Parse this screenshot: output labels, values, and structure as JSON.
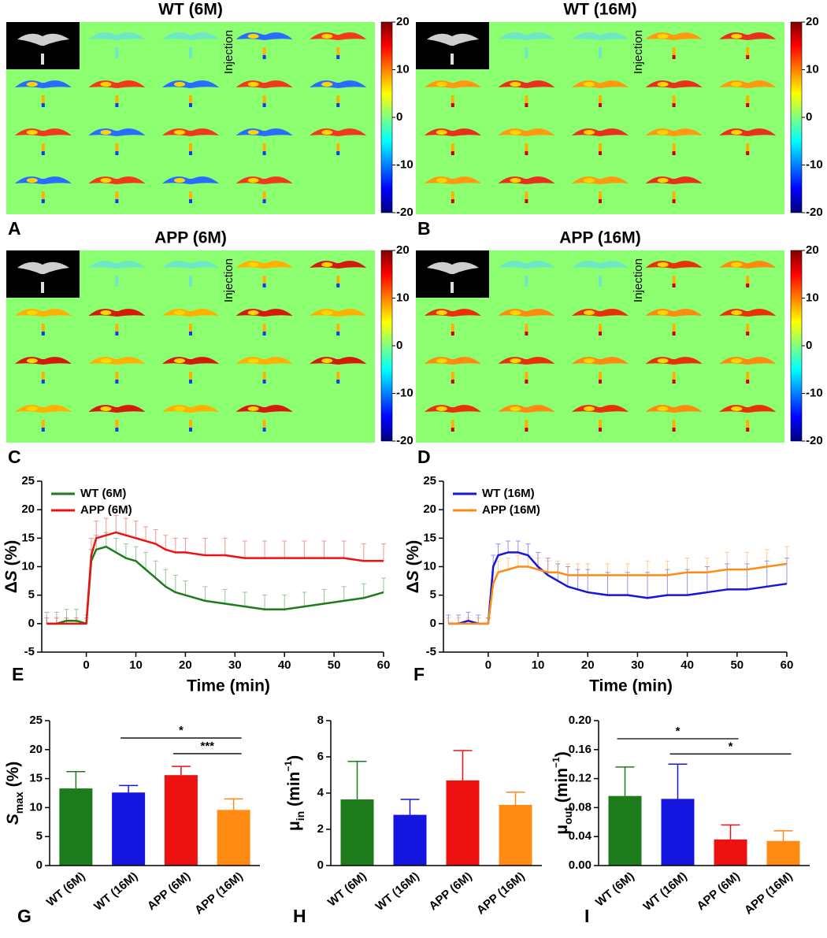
{
  "chart_data": [
    {
      "type": "heatmap-grid",
      "panel": "A",
      "title": "WT (6M)",
      "annotation": "Injection",
      "colorbar": {
        "colormap": "jet",
        "lim": [
          -20,
          20
        ],
        "ticks": [
          20,
          10,
          0,
          -10,
          -20
        ]
      }
    },
    {
      "type": "heatmap-grid",
      "panel": "B",
      "title": "WT (16M)",
      "annotation": "Injection",
      "colorbar": {
        "colormap": "jet",
        "lim": [
          -20,
          20
        ],
        "ticks": [
          20,
          10,
          0,
          -10,
          -20
        ]
      }
    },
    {
      "type": "heatmap-grid",
      "panel": "C",
      "title": "APP (6M)",
      "annotation": "Injection",
      "colorbar": {
        "colormap": "jet",
        "lim": [
          -20,
          20
        ],
        "ticks": [
          20,
          10,
          0,
          -10,
          -20
        ]
      }
    },
    {
      "type": "heatmap-grid",
      "panel": "D",
      "title": "APP (16M)",
      "annotation": "Injection",
      "colorbar": {
        "colormap": "jet",
        "lim": [
          -20,
          20
        ],
        "ticks": [
          20,
          10,
          0,
          -10,
          -20
        ]
      }
    },
    {
      "type": "line",
      "panel": "E",
      "x_label": "Time (min)",
      "y_label_parts": [
        {
          "text": "Δ"
        },
        {
          "text": "S",
          "style": "italic"
        },
        {
          "text": " (%)"
        }
      ],
      "xlim": [
        -9,
        60
      ],
      "xticks": [
        0,
        10,
        20,
        30,
        40,
        50,
        60
      ],
      "ylim": [
        -5,
        25
      ],
      "yticks": [
        -5,
        0,
        5,
        10,
        15,
        20,
        25
      ],
      "legend": "upper left",
      "x": [
        -8,
        -6,
        -4,
        -2,
        0,
        1,
        2,
        4,
        6,
        8,
        10,
        12,
        14,
        16,
        18,
        20,
        24,
        28,
        32,
        36,
        40,
        44,
        48,
        52,
        56,
        60
      ],
      "series": [
        {
          "name": "WT (6M)",
          "color": "#1c7c1c",
          "values": [
            0,
            0,
            0.5,
            0.5,
            0,
            11,
            13,
            13.5,
            12.5,
            11.5,
            11,
            9.5,
            8,
            6.5,
            5.5,
            5,
            4,
            3.5,
            3,
            2.5,
            2.5,
            3,
            3.5,
            4,
            4.5,
            5.5
          ],
          "errors": [
            2,
            2,
            2,
            2,
            1.5,
            2,
            2.5,
            2.5,
            2.5,
            2.5,
            2.5,
            3,
            3,
            3,
            3,
            2.5,
            2.5,
            2.5,
            2.5,
            2.5,
            2.5,
            2.5,
            2.5,
            2.5,
            2.5,
            2.5
          ]
        },
        {
          "name": "APP (6M)",
          "color": "#ee1111",
          "values": [
            0,
            0,
            0,
            0,
            0,
            12,
            15,
            15.5,
            16,
            15.5,
            15,
            14.5,
            14,
            13,
            12.5,
            12.5,
            12,
            12,
            11.5,
            11.5,
            11.5,
            11.5,
            11.5,
            11.5,
            11,
            11
          ],
          "errors": [
            1,
            1,
            1,
            1,
            1,
            3,
            3,
            3,
            3,
            3,
            3,
            2.5,
            2.5,
            2.5,
            2.5,
            2.5,
            3,
            3,
            3,
            3,
            3,
            3,
            3,
            3,
            3,
            3
          ]
        }
      ]
    },
    {
      "type": "line",
      "panel": "F",
      "x_label": "Time (min)",
      "y_label_parts": [
        {
          "text": "Δ"
        },
        {
          "text": "S",
          "style": "italic"
        },
        {
          "text": " (%)"
        }
      ],
      "xlim": [
        -9,
        60
      ],
      "xticks": [
        0,
        10,
        20,
        30,
        40,
        50,
        60
      ],
      "ylim": [
        -5,
        25
      ],
      "yticks": [
        -5,
        0,
        5,
        10,
        15,
        20,
        25
      ],
      "legend": "upper left",
      "x": [
        -8,
        -6,
        -4,
        -2,
        0,
        1,
        2,
        4,
        6,
        8,
        10,
        12,
        14,
        16,
        18,
        20,
        24,
        28,
        32,
        36,
        40,
        44,
        48,
        52,
        56,
        60
      ],
      "series": [
        {
          "name": "WT (16M)",
          "color": "#1515e0",
          "values": [
            0,
            0,
            0.5,
            0,
            0,
            10,
            12,
            12.5,
            12.5,
            12,
            10,
            8.5,
            7.5,
            6.5,
            6,
            5.5,
            5,
            5,
            4.5,
            5,
            5,
            5.5,
            6,
            6,
            6.5,
            7
          ],
          "errors": [
            1.5,
            1.5,
            1.5,
            1.5,
            1,
            2,
            2,
            2,
            2,
            2,
            2.5,
            3,
            3,
            3.5,
            3.5,
            4,
            4,
            4,
            4.5,
            4.5,
            4.5,
            4.5,
            4.5,
            4.5,
            4.5,
            4.5
          ]
        },
        {
          "name": "APP (16M)",
          "color": "#ff8a14",
          "values": [
            0,
            0,
            0,
            0,
            0,
            7,
            9,
            9.5,
            10,
            10,
            9.5,
            9,
            9,
            8.5,
            8.5,
            8.5,
            8.5,
            8.5,
            8.5,
            8.5,
            9,
            9,
            9.5,
            9.5,
            10,
            10.5
          ],
          "errors": [
            1,
            1,
            1,
            1,
            1,
            2,
            2,
            2,
            2,
            2,
            2,
            2,
            2,
            2,
            2,
            2,
            2,
            2,
            2.5,
            2.5,
            2.5,
            2.5,
            3,
            3,
            3,
            3
          ]
        }
      ]
    },
    {
      "type": "bar",
      "panel": "G",
      "y_label_parts": [
        {
          "text": "S",
          "style": "italic"
        },
        {
          "text": "max",
          "style": "sub"
        },
        {
          "text": " (%)"
        }
      ],
      "categories": [
        "WT (6M)",
        "WT (16M)",
        "APP (6M)",
        "APP (16M)"
      ],
      "values": [
        13.3,
        12.6,
        15.6,
        9.6
      ],
      "errors": [
        2.9,
        1.2,
        1.5,
        1.9
      ],
      "colors": [
        "#1c7c1c",
        "#1515e0",
        "#ee1111",
        "#ff8a14"
      ],
      "ylim": [
        0,
        25
      ],
      "yticks": [
        0,
        5,
        10,
        15,
        20,
        25
      ],
      "significance": [
        {
          "from": 1,
          "to": 3,
          "y": 22,
          "label": "*"
        },
        {
          "from": 2,
          "to": 3,
          "y": 19.3,
          "label": "***"
        }
      ]
    },
    {
      "type": "bar",
      "panel": "H",
      "y_label_parts": [
        {
          "text": "μ"
        },
        {
          "text": "in",
          "style": "sub"
        },
        {
          "text": " (min"
        },
        {
          "text": "−1",
          "style": "sup"
        },
        {
          "text": ")"
        }
      ],
      "categories": [
        "WT (6M)",
        "WT (16M)",
        "APP (6M)",
        "APP (16M)"
      ],
      "values": [
        3.65,
        2.8,
        4.7,
        3.35
      ],
      "errors": [
        2.1,
        0.85,
        1.65,
        0.7
      ],
      "colors": [
        "#1c7c1c",
        "#1515e0",
        "#ee1111",
        "#ff8a14"
      ],
      "ylim": [
        0,
        8
      ],
      "yticks": [
        0,
        2,
        4,
        6,
        8
      ],
      "significance": []
    },
    {
      "type": "bar",
      "panel": "I",
      "y_label_parts": [
        {
          "text": "μ"
        },
        {
          "text": "out",
          "style": "sub"
        },
        {
          "text": " (min"
        },
        {
          "text": "−1",
          "style": "sup"
        },
        {
          "text": ")"
        }
      ],
      "categories": [
        "WT (6M)",
        "WT (16M)",
        "APP (6M)",
        "APP (16M)"
      ],
      "values": [
        0.096,
        0.092,
        0.036,
        0.034
      ],
      "errors": [
        0.04,
        0.048,
        0.02,
        0.014
      ],
      "colors": [
        "#1c7c1c",
        "#1515e0",
        "#ee1111",
        "#ff8a14"
      ],
      "ylim": [
        0,
        0.2
      ],
      "yticks": [
        {
          "value": 0,
          "label": "0.00"
        },
        0.04,
        0.08,
        0.12,
        0.16,
        {
          "value": 0.2,
          "label": "0.20"
        }
      ],
      "significance": [
        {
          "from": 0,
          "to": 2,
          "y": 0.175,
          "label": "*"
        },
        {
          "from": 1,
          "to": 3,
          "y": 0.154,
          "label": "*"
        }
      ]
    }
  ]
}
